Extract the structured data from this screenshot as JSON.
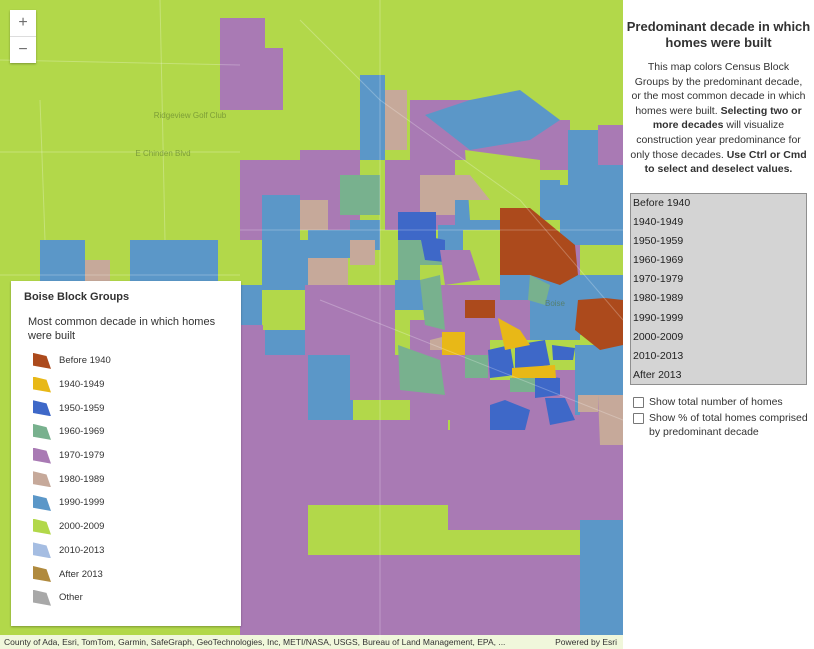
{
  "map": {
    "zoom_in_label": "+",
    "zoom_out_label": "−",
    "place_labels": [
      "Ridgeview Golf Club",
      "E Chinden Blvd",
      "Boise"
    ],
    "colors": {
      "before_1940": "#ac4a1c",
      "d1940": "#e8b817",
      "d1950": "#3e68c8",
      "d1960": "#78b18e",
      "d1970": "#a97ab4",
      "d1980": "#c6a99a",
      "d1990": "#5b97c8",
      "d2000": "#b2d84a",
      "d2010": "#a5bde2",
      "after_2013": "#b08a3e",
      "other": "#a8a8a8"
    }
  },
  "legend": {
    "title": "Boise Block Groups",
    "subtitle": "Most common decade in which homes were built",
    "items": [
      {
        "label": "Before 1940",
        "color": "#ac4a1c"
      },
      {
        "label": "1940-1949",
        "color": "#e8b817"
      },
      {
        "label": "1950-1959",
        "color": "#3e68c8"
      },
      {
        "label": "1960-1969",
        "color": "#78b18e"
      },
      {
        "label": "1970-1979",
        "color": "#a97ab4"
      },
      {
        "label": "1980-1989",
        "color": "#c6a99a"
      },
      {
        "label": "1990-1999",
        "color": "#5b97c8"
      },
      {
        "label": "2000-2009",
        "color": "#b2d84a"
      },
      {
        "label": "2010-2013",
        "color": "#a5bde2"
      },
      {
        "label": "After 2013",
        "color": "#b08a3e"
      },
      {
        "label": "Other",
        "color": "#a8a8a8"
      }
    ]
  },
  "attribution": {
    "sources": "County of Ada, Esri, TomTom, Garmin, SafeGraph, GeoTechnologies, Inc, METI/NASA, USGS, Bureau of Land Management, EPA, ...",
    "powered_by": "Powered by Esri"
  },
  "panel": {
    "title": "Predominant decade in which homes were built",
    "desc_plain1": "This map colors Census Block Groups by the predominant decade, or the most common decade in which homes were built. ",
    "desc_bold1": "Selecting two or more decades",
    "desc_plain2": " will visualize construction year predominance for only those decades. ",
    "desc_bold2": "Use Ctrl or Cmd to select and deselect values.",
    "decades": [
      "Before 1940",
      "1940-1949",
      "1950-1959",
      "1960-1969",
      "1970-1979",
      "1980-1989",
      "1990-1999",
      "2000-2009",
      "2010-2013",
      "After 2013"
    ],
    "show_total_label": "Show total number of homes",
    "show_pct_label": "Show % of total homes comprised by predominant decade"
  }
}
